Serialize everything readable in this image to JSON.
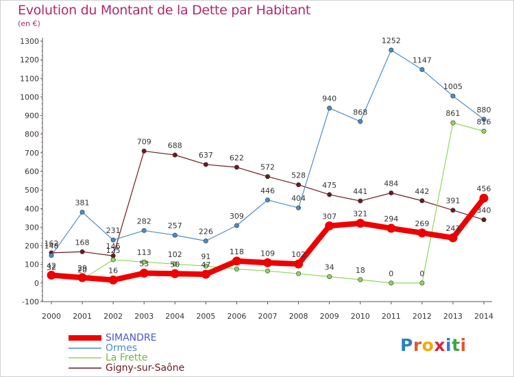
{
  "title": "Evolution du Montant de la Dette par Habitant",
  "unit_label": "(en €)",
  "logo": {
    "letters": [
      "P",
      "r",
      "o",
      "x",
      "i",
      "t",
      "i"
    ],
    "colors": [
      "#2f7fc1",
      "#e4572e",
      "#f2a900",
      "#d7263d",
      "#2f7fc1",
      "#3fa34d",
      "#e4572e"
    ]
  },
  "chart_data": {
    "type": "line",
    "title": "Evolution du Montant de la Dette par Habitant",
    "ylabel": "(en €)",
    "xlabel": "",
    "x": [
      "2000",
      "2001",
      "2002",
      "2003",
      "2004",
      "2005",
      "2006",
      "2007",
      "2008",
      "2009",
      "2010",
      "2011",
      "2012",
      "2013",
      "2014"
    ],
    "ylim": [
      -100,
      1300
    ],
    "yticks": [
      "-100",
      "0",
      "100",
      "200",
      "300",
      "400",
      "500",
      "600",
      "700",
      "800",
      "900",
      "1000",
      "1100",
      "1200",
      "1300"
    ],
    "grid": false,
    "legend_position": "bottom-left",
    "series": [
      {
        "name": "Gigny-sur-Saône",
        "color": "#6b1a1f",
        "width": 1.2,
        "marker": 3.2,
        "values": [
          162,
          168,
          146,
          709,
          688,
          637,
          622,
          572,
          528,
          475,
          441,
          484,
          442,
          391,
          340
        ],
        "labels": [
          "162",
          "168",
          "146",
          "709",
          "688",
          "637",
          "622",
          "572",
          "528",
          "475",
          "441",
          "484",
          "442",
          "391",
          "340"
        ]
      },
      {
        "name": "La Frette",
        "color": "#8fd65a",
        "width": 1.2,
        "marker": 3.2,
        "values": [
          32,
          20,
          125,
          113,
          102,
          91,
          75,
          65,
          50,
          34,
          18,
          0,
          0,
          861,
          816
        ],
        "labels": [
          "32",
          "20",
          "125",
          "113",
          "102",
          "91",
          "",
          "",
          "",
          "34",
          "18",
          "0",
          "0",
          "861",
          "816"
        ]
      },
      {
        "name": "Ormes",
        "color": "#4a8bc8",
        "width": 1.2,
        "marker": 3.2,
        "values": [
          148,
          381,
          231,
          282,
          257,
          226,
          309,
          446,
          404,
          940,
          868,
          1252,
          1147,
          1005,
          880
        ],
        "labels": [
          "148",
          "381",
          "231",
          "282",
          "257",
          "226",
          "309",
          "446",
          "404",
          "940",
          "868",
          "1252",
          "1147",
          "1005",
          "880"
        ]
      },
      {
        "name": "SIMANDRE",
        "color": "#ee0000",
        "width": 8,
        "marker": 6.5,
        "values": [
          42,
          29,
          16,
          53,
          50,
          47,
          118,
          109,
          102,
          307,
          321,
          294,
          269,
          243,
          456
        ],
        "labels": [
          "42",
          "29",
          "16",
          "53",
          "50",
          "47",
          "118",
          "109",
          "102",
          "307",
          "321",
          "294",
          "269",
          "243",
          "456"
        ]
      }
    ]
  }
}
